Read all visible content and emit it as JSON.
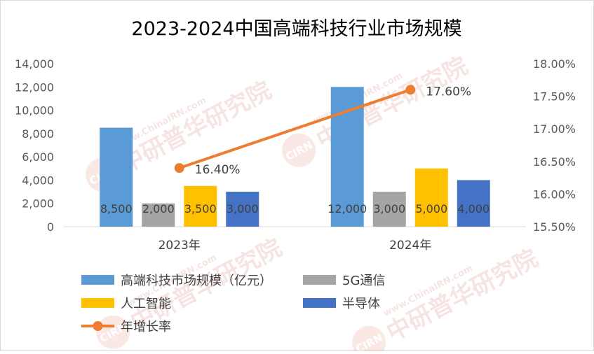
{
  "chart_data": {
    "type": "bar",
    "title": "2023-2024中国高端科技行业市场规模",
    "categories": [
      "2023年",
      "2024年"
    ],
    "series": [
      {
        "name": "高端科技市场规模（亿元）",
        "kind": "bar",
        "axis": "left",
        "color": "#5b9bd5",
        "values": [
          8500,
          12000
        ],
        "labels": [
          "8,500",
          "12,000"
        ]
      },
      {
        "name": "5G通信",
        "kind": "bar",
        "axis": "left",
        "color": "#a5a5a5",
        "values": [
          2000,
          3000
        ],
        "labels": [
          "2,000",
          "3,000"
        ]
      },
      {
        "name": "人工智能",
        "kind": "bar",
        "axis": "left",
        "color": "#ffc000",
        "values": [
          3500,
          5000
        ],
        "labels": [
          "3,500",
          "5,000"
        ]
      },
      {
        "name": "半导体",
        "kind": "bar",
        "axis": "left",
        "color": "#4472c4",
        "values": [
          3000,
          4000
        ],
        "labels": [
          "3,000",
          "4,000"
        ]
      },
      {
        "name": "年增长率",
        "kind": "line",
        "axis": "right",
        "color": "#ed7d31",
        "values": [
          16.4,
          17.6
        ],
        "labels": [
          "16.40%",
          "17.60%"
        ]
      }
    ],
    "y_left": {
      "ylim": [
        0,
        14000
      ],
      "ticks": [
        0,
        2000,
        4000,
        6000,
        8000,
        10000,
        12000,
        14000
      ],
      "tick_labels": [
        "0",
        "2,000",
        "4,000",
        "6,000",
        "8,000",
        "10,000",
        "12,000",
        "14,000"
      ]
    },
    "y_right": {
      "ylim": [
        15.5,
        18.0
      ],
      "ticks": [
        15.5,
        16.0,
        16.5,
        17.0,
        17.5,
        18.0
      ],
      "tick_labels": [
        "15.50%",
        "16.00%",
        "16.50%",
        "17.00%",
        "17.50%",
        "18.00%"
      ]
    },
    "grid": false,
    "legend_position": "bottom"
  },
  "watermark": {
    "text": "中研普华研究院",
    "url_text": "www.ChinaIRN.com",
    "logo_text": "CIRN"
  }
}
